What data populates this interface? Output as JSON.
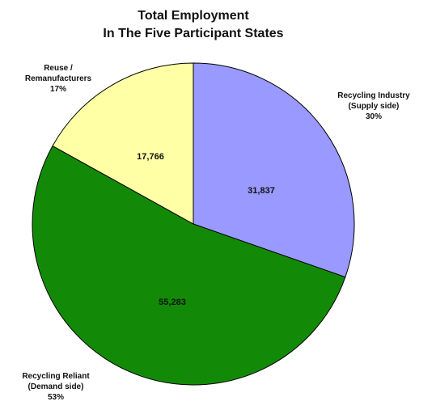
{
  "chart_data": {
    "type": "pie",
    "title": "Total Employment",
    "subtitle": "In The Five Participant States",
    "slices": [
      {
        "name_lines": [
          "Recycling Industry",
          "(Supply side)"
        ],
        "value": 31837,
        "value_label": "31,837",
        "percent": 30,
        "percent_label": "30%",
        "color": "#9999ff"
      },
      {
        "name_lines": [
          "Recycling Reliant",
          "(Demand side)"
        ],
        "value": 55283,
        "value_label": "55,283",
        "percent": 53,
        "percent_label": "53%",
        "color": "#138a07"
      },
      {
        "name_lines": [
          "Reuse /",
          "Remanufacturers"
        ],
        "value": 17766,
        "value_label": "17,766",
        "percent": 17,
        "percent_label": "17%",
        "color": "#ffffa6"
      }
    ],
    "start_angle": "12 o'clock",
    "direction": "clockwise",
    "legend": "none"
  }
}
